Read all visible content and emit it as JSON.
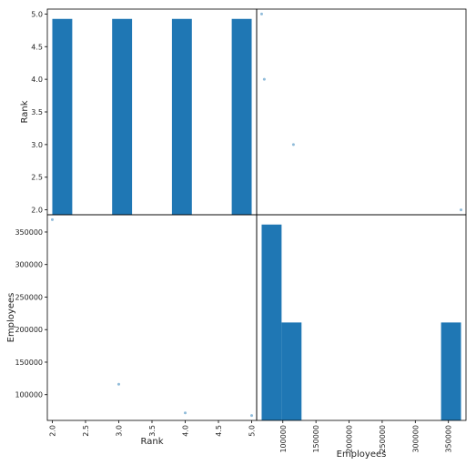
{
  "chart_data": {
    "type": "scatter_matrix",
    "color": "#1f77b4",
    "variables": [
      {
        "name": "Rank",
        "values": [
          2,
          3,
          4,
          5
        ],
        "lim": [
          1.925,
          5.075
        ],
        "ticks": [
          {
            "value": 2,
            "label": "2.0"
          },
          {
            "value": 2.5,
            "label": "2.5"
          },
          {
            "value": 3,
            "label": "3.0"
          },
          {
            "value": 3.5,
            "label": "3.5"
          },
          {
            "value": 4,
            "label": "4.0"
          },
          {
            "value": 4.5,
            "label": "4.5"
          },
          {
            "value": 5,
            "label": "5.0"
          }
        ],
        "hist_bins": [
          2,
          2.3,
          2.6,
          2.9,
          3.2,
          3.5,
          3.8,
          4.1,
          4.4,
          4.7,
          5
        ],
        "hist_counts": [
          1,
          0,
          0,
          1,
          0,
          0,
          1,
          0,
          0,
          1
        ]
      },
      {
        "name": "Employees",
        "values": [
          369000,
          116000,
          72000,
          68000
        ],
        "lim": [
          60475,
          376525
        ],
        "ticks": [
          100000,
          150000,
          200000,
          250000,
          300000,
          350000
        ],
        "hist_bins": [
          68000,
          98100,
          128200,
          158300,
          188400,
          218500,
          248600,
          278700,
          308800,
          338900,
          369000
        ],
        "hist_counts": [
          2,
          1,
          0,
          0,
          0,
          0,
          0,
          0,
          0,
          1
        ]
      }
    ]
  }
}
